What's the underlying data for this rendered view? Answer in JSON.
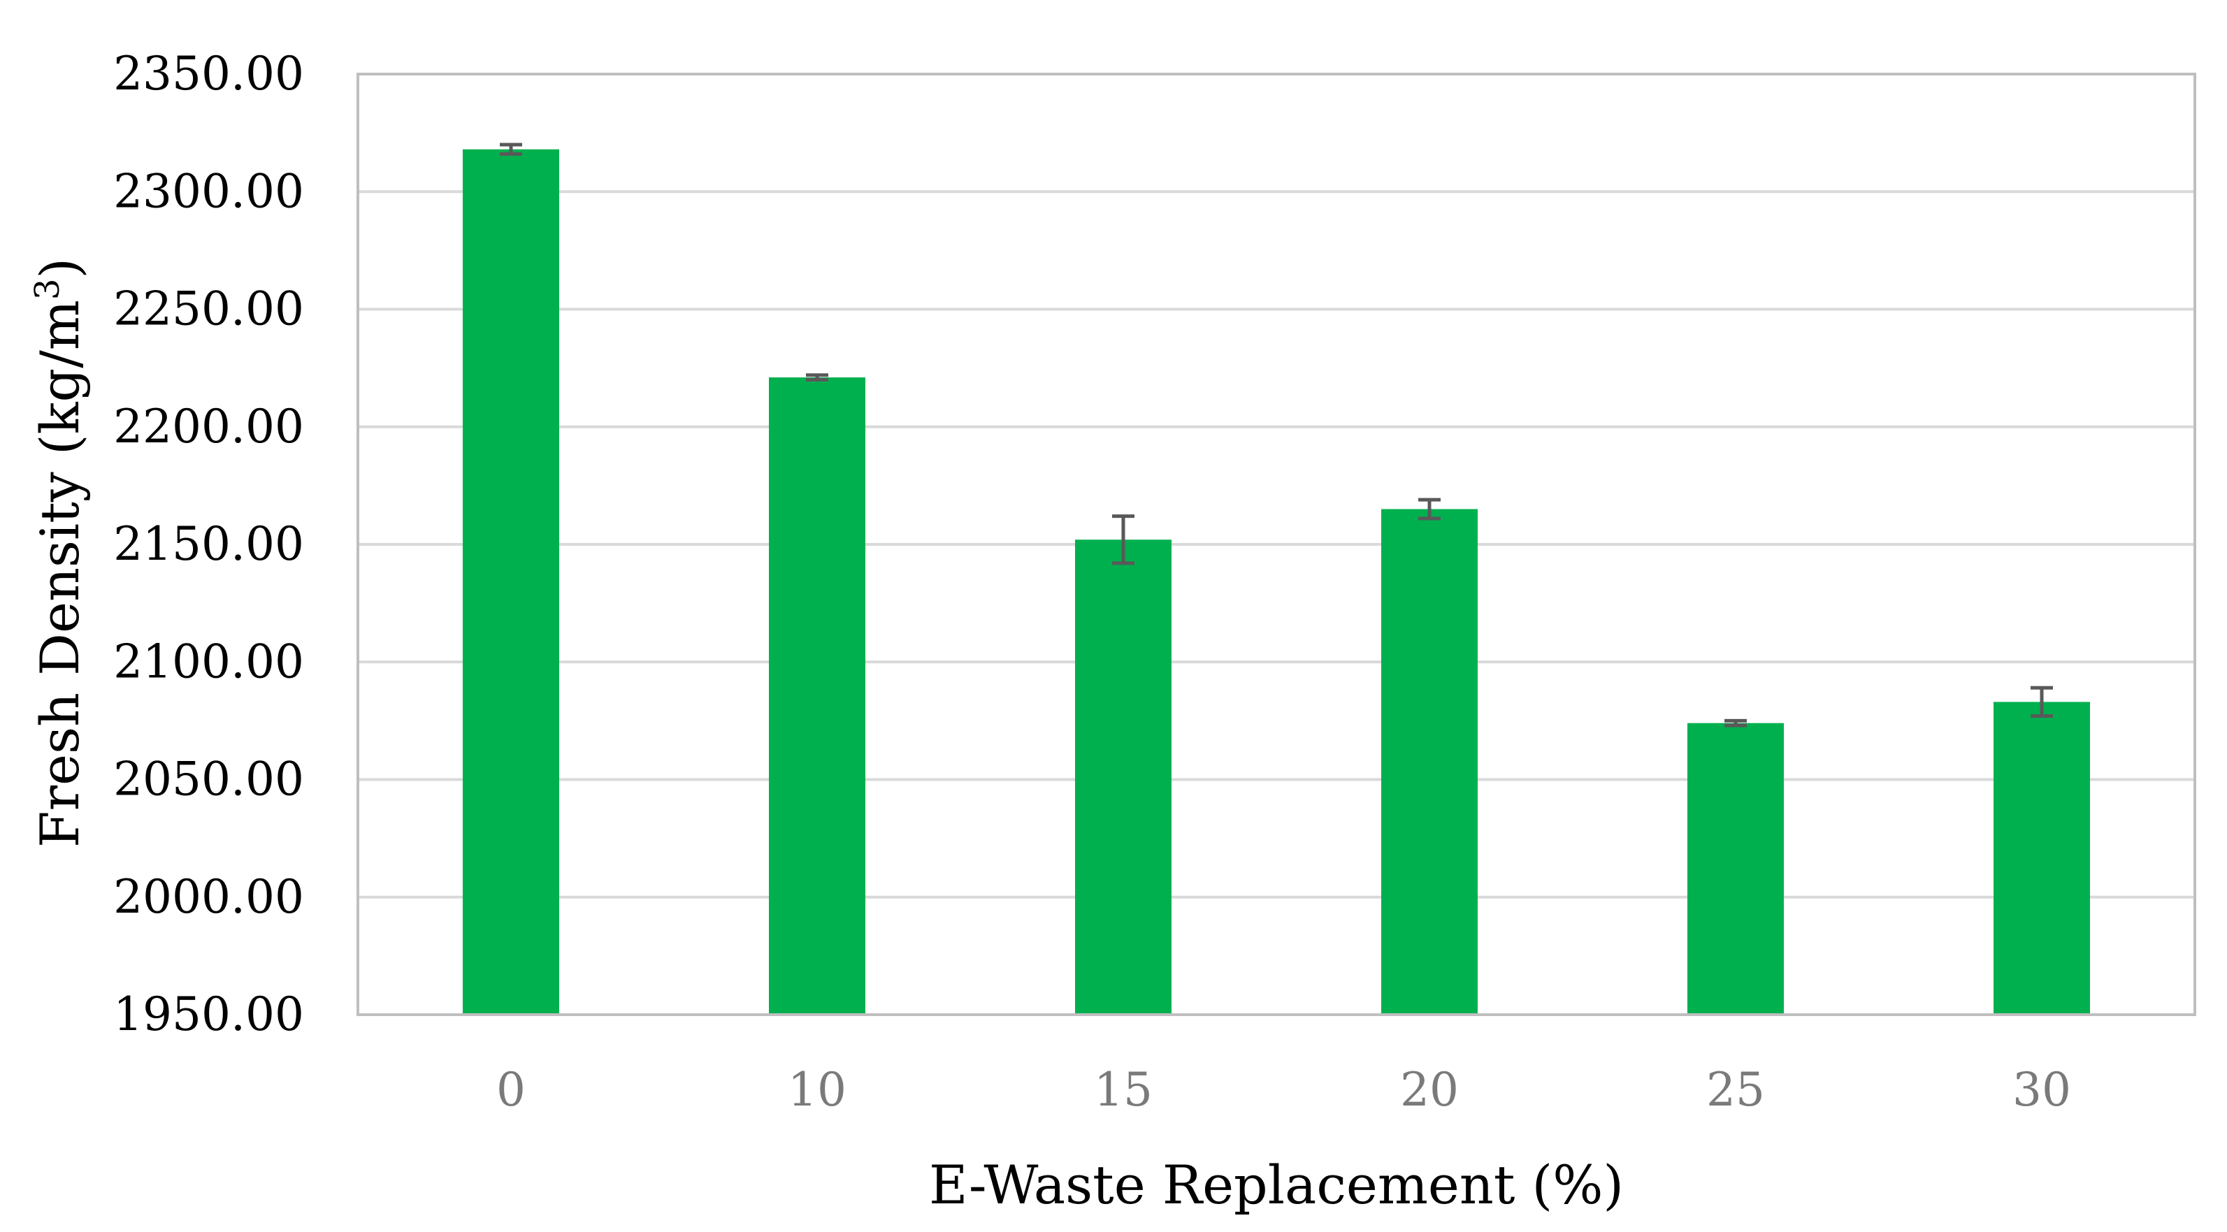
{
  "chart_data": {
    "type": "bar",
    "title": "",
    "xlabel": "E-Waste Replacement (%)",
    "ylabel": "Fresh Density (kg/m",
    "ylabel_superscript": "3",
    "ylabel_suffix": ")",
    "categories": [
      "0",
      "10",
      "15",
      "20",
      "25",
      "30"
    ],
    "series": [
      {
        "values": [
          2318,
          2221,
          2152,
          2165,
          2074,
          2083
        ],
        "error": [
          2,
          1,
          10,
          4,
          1,
          6
        ]
      }
    ],
    "ylim": [
      1950,
      2350
    ],
    "yticks": [
      1950,
      2000,
      2050,
      2100,
      2150,
      2200,
      2250,
      2300,
      2350
    ],
    "ytick_labels": [
      "1950.00",
      "2000.00",
      "2050.00",
      "2100.00",
      "2150.00",
      "2200.00",
      "2250.00",
      "2300.00",
      "2350.00"
    ],
    "grid": true,
    "legend": "none",
    "colors": {
      "bar": "#00b04f",
      "error_bar": "#595959",
      "grid": "#d9d9d9",
      "frame": "#bfbfbf"
    }
  }
}
